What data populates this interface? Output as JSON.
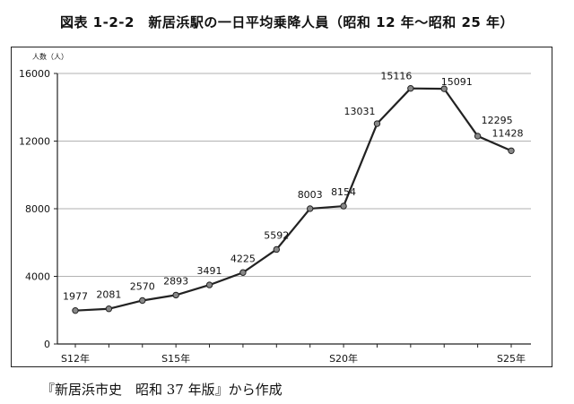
{
  "title": "図表 1-2-2　新居浜駅の一日平均乗降人員（昭和 12 年～昭和 25 年）",
  "source": "『新居浜市史　昭和 37 年版』から作成",
  "chart_data": {
    "type": "line",
    "ylabel": "人数（人）",
    "ylim": [
      0,
      16000
    ],
    "yticks": [
      0,
      4000,
      8000,
      12000,
      16000
    ],
    "x": [
      12,
      13,
      14,
      15,
      16,
      17,
      18,
      19,
      20,
      21,
      22,
      23,
      24,
      25
    ],
    "xtick_labels": [
      {
        "x": 12,
        "label": "S12年"
      },
      {
        "x": 15,
        "label": "S15年"
      },
      {
        "x": 20,
        "label": "S20年"
      },
      {
        "x": 25,
        "label": "S25年"
      }
    ],
    "series": [
      {
        "values": [
          1977,
          2081,
          2570,
          2893,
          3491,
          4225,
          5592,
          8003,
          8154,
          13031,
          15116,
          15091,
          12295,
          11428
        ]
      }
    ],
    "grid": true,
    "line_color": "#222222",
    "marker_color": "#888888"
  }
}
